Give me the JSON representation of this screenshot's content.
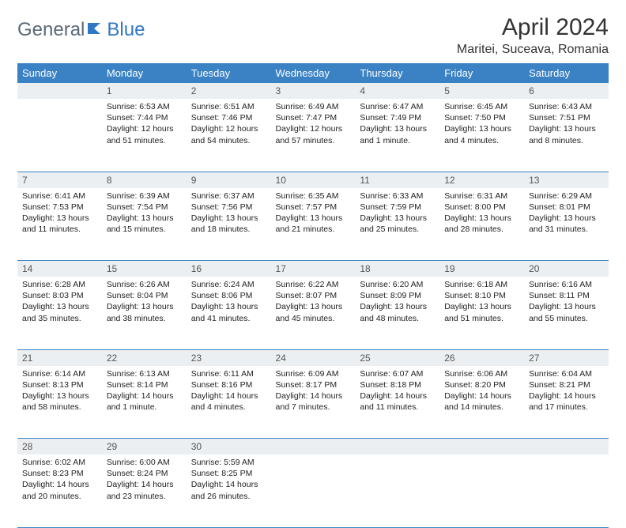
{
  "brand": {
    "part1": "General",
    "part2": "Blue"
  },
  "title": "April 2024",
  "location": "Maritei, Suceava, Romania",
  "colors": {
    "header_bg": "#3b82c4",
    "header_fg": "#ffffff",
    "daynum_bg": "#eceff1",
    "row_border": "#3b82c4",
    "brand_gray": "#5a6a78",
    "brand_blue": "#2f78c4"
  },
  "weekdays": [
    "Sunday",
    "Monday",
    "Tuesday",
    "Wednesday",
    "Thursday",
    "Friday",
    "Saturday"
  ],
  "weeks": [
    [
      {
        "n": "",
        "sunrise": "",
        "sunset": "",
        "daylight": ""
      },
      {
        "n": "1",
        "sunrise": "Sunrise: 6:53 AM",
        "sunset": "Sunset: 7:44 PM",
        "daylight": "Daylight: 12 hours and 51 minutes."
      },
      {
        "n": "2",
        "sunrise": "Sunrise: 6:51 AM",
        "sunset": "Sunset: 7:46 PM",
        "daylight": "Daylight: 12 hours and 54 minutes."
      },
      {
        "n": "3",
        "sunrise": "Sunrise: 6:49 AM",
        "sunset": "Sunset: 7:47 PM",
        "daylight": "Daylight: 12 hours and 57 minutes."
      },
      {
        "n": "4",
        "sunrise": "Sunrise: 6:47 AM",
        "sunset": "Sunset: 7:49 PM",
        "daylight": "Daylight: 13 hours and 1 minute."
      },
      {
        "n": "5",
        "sunrise": "Sunrise: 6:45 AM",
        "sunset": "Sunset: 7:50 PM",
        "daylight": "Daylight: 13 hours and 4 minutes."
      },
      {
        "n": "6",
        "sunrise": "Sunrise: 6:43 AM",
        "sunset": "Sunset: 7:51 PM",
        "daylight": "Daylight: 13 hours and 8 minutes."
      }
    ],
    [
      {
        "n": "7",
        "sunrise": "Sunrise: 6:41 AM",
        "sunset": "Sunset: 7:53 PM",
        "daylight": "Daylight: 13 hours and 11 minutes."
      },
      {
        "n": "8",
        "sunrise": "Sunrise: 6:39 AM",
        "sunset": "Sunset: 7:54 PM",
        "daylight": "Daylight: 13 hours and 15 minutes."
      },
      {
        "n": "9",
        "sunrise": "Sunrise: 6:37 AM",
        "sunset": "Sunset: 7:56 PM",
        "daylight": "Daylight: 13 hours and 18 minutes."
      },
      {
        "n": "10",
        "sunrise": "Sunrise: 6:35 AM",
        "sunset": "Sunset: 7:57 PM",
        "daylight": "Daylight: 13 hours and 21 minutes."
      },
      {
        "n": "11",
        "sunrise": "Sunrise: 6:33 AM",
        "sunset": "Sunset: 7:59 PM",
        "daylight": "Daylight: 13 hours and 25 minutes."
      },
      {
        "n": "12",
        "sunrise": "Sunrise: 6:31 AM",
        "sunset": "Sunset: 8:00 PM",
        "daylight": "Daylight: 13 hours and 28 minutes."
      },
      {
        "n": "13",
        "sunrise": "Sunrise: 6:29 AM",
        "sunset": "Sunset: 8:01 PM",
        "daylight": "Daylight: 13 hours and 31 minutes."
      }
    ],
    [
      {
        "n": "14",
        "sunrise": "Sunrise: 6:28 AM",
        "sunset": "Sunset: 8:03 PM",
        "daylight": "Daylight: 13 hours and 35 minutes."
      },
      {
        "n": "15",
        "sunrise": "Sunrise: 6:26 AM",
        "sunset": "Sunset: 8:04 PM",
        "daylight": "Daylight: 13 hours and 38 minutes."
      },
      {
        "n": "16",
        "sunrise": "Sunrise: 6:24 AM",
        "sunset": "Sunset: 8:06 PM",
        "daylight": "Daylight: 13 hours and 41 minutes."
      },
      {
        "n": "17",
        "sunrise": "Sunrise: 6:22 AM",
        "sunset": "Sunset: 8:07 PM",
        "daylight": "Daylight: 13 hours and 45 minutes."
      },
      {
        "n": "18",
        "sunrise": "Sunrise: 6:20 AM",
        "sunset": "Sunset: 8:09 PM",
        "daylight": "Daylight: 13 hours and 48 minutes."
      },
      {
        "n": "19",
        "sunrise": "Sunrise: 6:18 AM",
        "sunset": "Sunset: 8:10 PM",
        "daylight": "Daylight: 13 hours and 51 minutes."
      },
      {
        "n": "20",
        "sunrise": "Sunrise: 6:16 AM",
        "sunset": "Sunset: 8:11 PM",
        "daylight": "Daylight: 13 hours and 55 minutes."
      }
    ],
    [
      {
        "n": "21",
        "sunrise": "Sunrise: 6:14 AM",
        "sunset": "Sunset: 8:13 PM",
        "daylight": "Daylight: 13 hours and 58 minutes."
      },
      {
        "n": "22",
        "sunrise": "Sunrise: 6:13 AM",
        "sunset": "Sunset: 8:14 PM",
        "daylight": "Daylight: 14 hours and 1 minute."
      },
      {
        "n": "23",
        "sunrise": "Sunrise: 6:11 AM",
        "sunset": "Sunset: 8:16 PM",
        "daylight": "Daylight: 14 hours and 4 minutes."
      },
      {
        "n": "24",
        "sunrise": "Sunrise: 6:09 AM",
        "sunset": "Sunset: 8:17 PM",
        "daylight": "Daylight: 14 hours and 7 minutes."
      },
      {
        "n": "25",
        "sunrise": "Sunrise: 6:07 AM",
        "sunset": "Sunset: 8:18 PM",
        "daylight": "Daylight: 14 hours and 11 minutes."
      },
      {
        "n": "26",
        "sunrise": "Sunrise: 6:06 AM",
        "sunset": "Sunset: 8:20 PM",
        "daylight": "Daylight: 14 hours and 14 minutes."
      },
      {
        "n": "27",
        "sunrise": "Sunrise: 6:04 AM",
        "sunset": "Sunset: 8:21 PM",
        "daylight": "Daylight: 14 hours and 17 minutes."
      }
    ],
    [
      {
        "n": "28",
        "sunrise": "Sunrise: 6:02 AM",
        "sunset": "Sunset: 8:23 PM",
        "daylight": "Daylight: 14 hours and 20 minutes."
      },
      {
        "n": "29",
        "sunrise": "Sunrise: 6:00 AM",
        "sunset": "Sunset: 8:24 PM",
        "daylight": "Daylight: 14 hours and 23 minutes."
      },
      {
        "n": "30",
        "sunrise": "Sunrise: 5:59 AM",
        "sunset": "Sunset: 8:25 PM",
        "daylight": "Daylight: 14 hours and 26 minutes."
      },
      {
        "n": "",
        "sunrise": "",
        "sunset": "",
        "daylight": ""
      },
      {
        "n": "",
        "sunrise": "",
        "sunset": "",
        "daylight": ""
      },
      {
        "n": "",
        "sunrise": "",
        "sunset": "",
        "daylight": ""
      },
      {
        "n": "",
        "sunrise": "",
        "sunset": "",
        "daylight": ""
      }
    ]
  ]
}
